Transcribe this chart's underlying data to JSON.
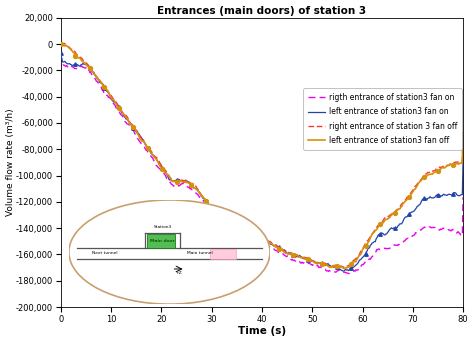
{
  "title": "Entrances (main doors) of station 3",
  "xlabel": "Time (s)",
  "ylabel": "Volume flow rate (m³/h)",
  "xlim": [
    0,
    80
  ],
  "ylim": [
    -200000,
    20000
  ],
  "yticks": [
    -200000,
    -180000,
    -160000,
    -140000,
    -120000,
    -100000,
    -80000,
    -60000,
    -40000,
    -20000,
    0,
    20000
  ],
  "xticks": [
    0,
    10,
    20,
    30,
    40,
    50,
    60,
    70,
    80
  ],
  "legend": [
    {
      "label": "left entrance of station3 fan off",
      "color": "#D4920A",
      "linestyle": "-",
      "marker": "o"
    },
    {
      "label": "right entrance of station 3 fan off",
      "color": "#FF3333",
      "linestyle": "--",
      "marker": null
    },
    {
      "label": "left entrance of station3 fan on",
      "color": "#2244AA",
      "linestyle": "-",
      "marker": "^"
    },
    {
      "label": "rigth entrance of station3 fan on",
      "color": "#EE00EE",
      "linestyle": "-",
      "marker": null
    }
  ],
  "bg_color": "#ffffff"
}
